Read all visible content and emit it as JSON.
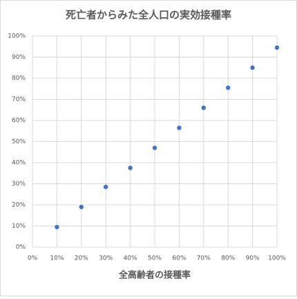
{
  "chart_data": {
    "type": "scatter",
    "title": "死亡者からみた全人口の実効接種率",
    "x_label": "全高齢者の接種率",
    "x": [
      10,
      20,
      30,
      40,
      50,
      60,
      70,
      80,
      90,
      100
    ],
    "values": [
      9.5,
      19,
      28.5,
      37.5,
      47,
      56.5,
      66,
      75.5,
      85,
      94.5
    ],
    "color": "#4472c4",
    "xlim": [
      0,
      100
    ],
    "ylim": [
      0,
      100
    ],
    "xticks": [
      {
        "value": 0,
        "label": "0%"
      },
      {
        "value": 10,
        "label": "10%"
      },
      {
        "value": 20,
        "label": "20%"
      },
      {
        "value": 30,
        "label": "30%"
      },
      {
        "value": 40,
        "label": "40%"
      },
      {
        "value": 50,
        "label": "50%"
      },
      {
        "value": 60,
        "label": "60%"
      },
      {
        "value": 70,
        "label": "70%"
      },
      {
        "value": 80,
        "label": "80%"
      },
      {
        "value": 90,
        "label": "90%"
      },
      {
        "value": 100,
        "label": "100%"
      }
    ],
    "yticks": [
      {
        "value": 0,
        "label": "0%"
      },
      {
        "value": 10,
        "label": "10%"
      },
      {
        "value": 20,
        "label": "20%"
      },
      {
        "value": 30,
        "label": "30%"
      },
      {
        "value": 40,
        "label": "40%"
      },
      {
        "value": 50,
        "label": "50%"
      },
      {
        "value": 60,
        "label": "60%"
      },
      {
        "value": 70,
        "label": "70%"
      },
      {
        "value": 80,
        "label": "80%"
      },
      {
        "value": 90,
        "label": "90%"
      },
      {
        "value": 100,
        "label": "100%"
      }
    ],
    "grid": true
  }
}
